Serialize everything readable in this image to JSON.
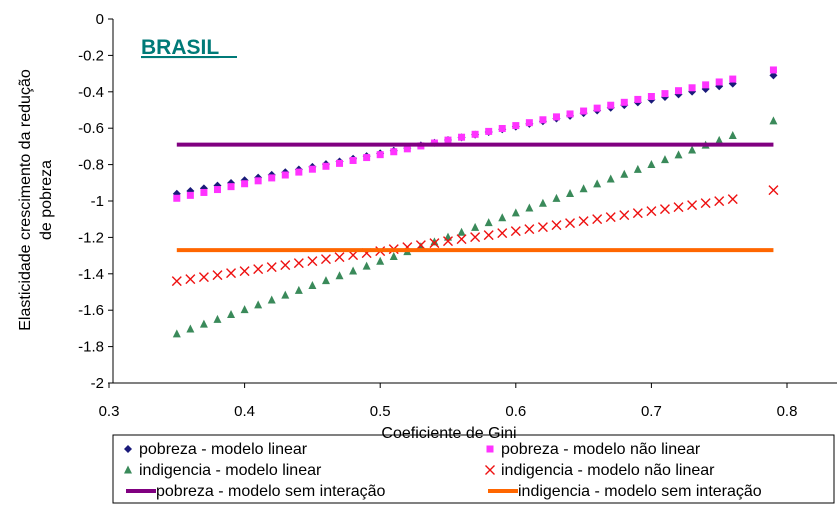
{
  "chart_data": {
    "type": "scatter",
    "annotation": "BRASIL",
    "xlabel": "Coeficiente de Gini",
    "ylabel_lines": [
      "Elasticidade crescimento da redução",
      "de pobreza"
    ],
    "xlim": [
      0.3,
      0.8
    ],
    "ylim": [
      -2,
      0
    ],
    "x_ticks": [
      0.3,
      0.4,
      0.5,
      0.6,
      0.7,
      0.8
    ],
    "x_tick_labels": [
      "0.3",
      "0.4",
      "0.5",
      "0.6",
      "0.7",
      "0.8"
    ],
    "y_ticks": [
      0,
      -0.2,
      -0.4,
      -0.6,
      -0.8,
      -1,
      -1.2,
      -1.4,
      -1.6,
      -1.8,
      -2
    ],
    "y_tick_labels": [
      "0",
      "-0.2",
      "-0.4",
      "-0.6",
      "-0.8",
      "-1",
      "-1.2",
      "-1.4",
      "-1.6",
      "-1.8",
      "-2"
    ],
    "grid": false,
    "legend_position": "bottom",
    "series": [
      {
        "name": "pobreza - modelo linear",
        "marker": "diamond",
        "color": "#1a1a7a",
        "x_start": 0.35,
        "x_end": 0.76,
        "x_step": 0.01,
        "y_start": -0.96,
        "y_end": -0.355,
        "extra_point": [
          0.79,
          -0.31
        ]
      },
      {
        "name": "pobreza - modelo não linear",
        "marker": "square",
        "color": "#ff33ff",
        "x_start": 0.35,
        "x_end": 0.76,
        "x_step": 0.01,
        "y_start": -0.985,
        "y_end": -0.33,
        "extra_point": [
          0.79,
          -0.28
        ]
      },
      {
        "name": "indigencia - modelo linear",
        "marker": "triangle",
        "color": "#3a8a5a",
        "x_start": 0.35,
        "x_end": 0.76,
        "x_step": 0.01,
        "y_start": -1.73,
        "y_end": -0.64,
        "extra_point": [
          0.79,
          -0.56
        ]
      },
      {
        "name": "indigencia - modelo não linear",
        "marker": "x",
        "color": "#ee1111",
        "x_start": 0.35,
        "x_end": 0.76,
        "x_step": 0.01,
        "y_start": -1.44,
        "y_end": -0.99,
        "extra_point": [
          0.79,
          -0.94
        ]
      },
      {
        "name": "pobreza - modelo sem interação",
        "marker": "line",
        "color": "#800080",
        "x": [
          0.35,
          0.79
        ],
        "y": [
          -0.69,
          -0.69
        ]
      },
      {
        "name": "indigencia - modelo sem interação",
        "marker": "line",
        "color": "#ff6600",
        "x": [
          0.35,
          0.79
        ],
        "y": [
          -1.27,
          -1.27
        ]
      }
    ]
  }
}
